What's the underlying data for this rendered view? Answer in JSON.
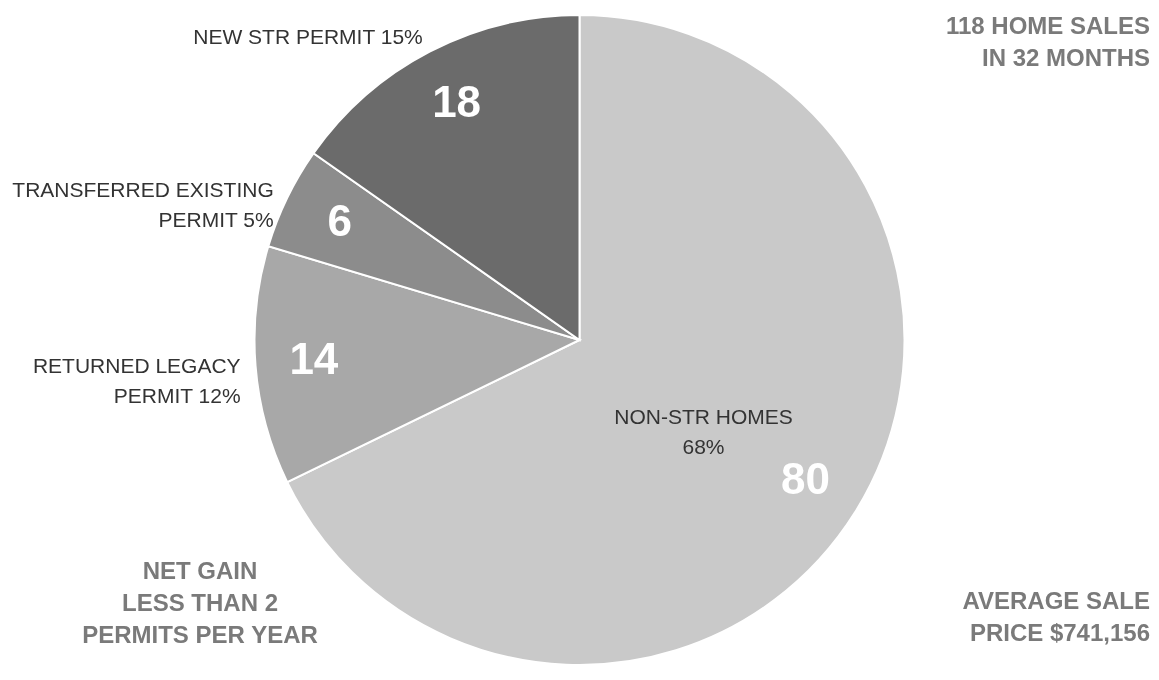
{
  "chart_data": {
    "type": "pie",
    "categories": [
      "NON-STR HOMES\n68%",
      "RETURNED LEGACY\nPERMIT 12%",
      "TRANSFERRED EXISTING\nPERMIT 5%",
      "NEW STR PERMIT 15%"
    ],
    "values": [
      80,
      14,
      6,
      18
    ],
    "colors": [
      "#c9c9c9",
      "#a8a8a8",
      "#8c8c8c",
      "#6b6b6b"
    ],
    "data_labels": true,
    "annotations": [
      "118 HOME SALES\nIN 32 MONTHS",
      "NET GAIN\nLESS THAN 2\nPERMITS PER YEAR",
      "AVERAGE SALE\nPRICE $741,156"
    ]
  }
}
